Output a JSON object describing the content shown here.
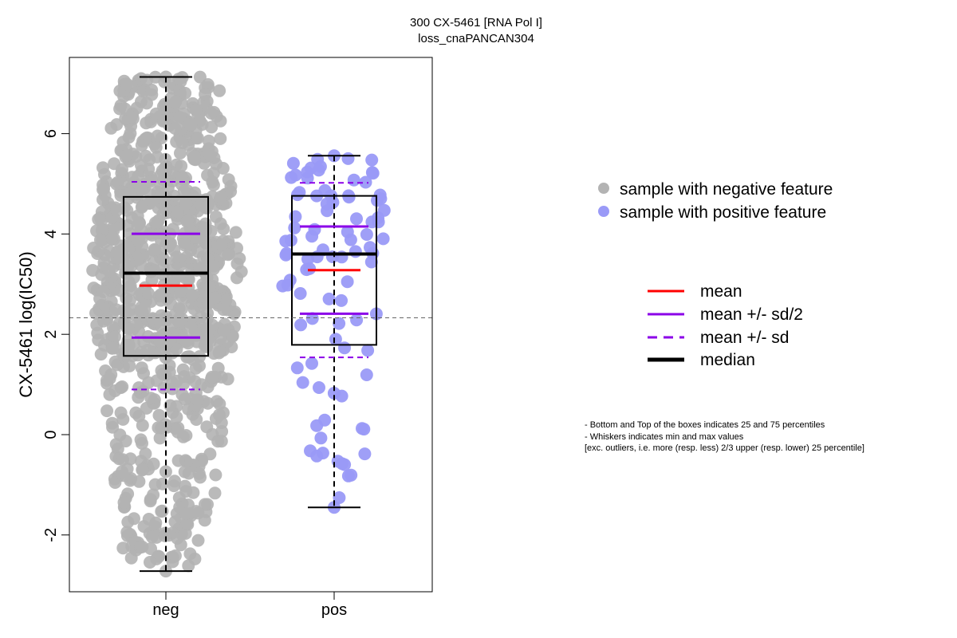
{
  "chart_data": {
    "type": "box",
    "title_line1": "300 CX-5461 [RNA Pol I]",
    "title_line2": "loss_cnaPANCAN304",
    "ylabel": "CX-5461 log(IC50)",
    "xlabel": "",
    "categories": [
      "neg",
      "pos"
    ],
    "ylim": [
      -3.0,
      7.5
    ],
    "yticks": [
      -2,
      0,
      2,
      4,
      6
    ],
    "reference_line": 2.33,
    "groups": [
      {
        "name": "neg",
        "color": "#b3b3b3",
        "n_points": 950,
        "min": -2.72,
        "q1": 1.57,
        "median": 3.22,
        "q3": 4.74,
        "max": 7.13,
        "mean": 2.97,
        "sd": 2.07
      },
      {
        "name": "pos",
        "color": "#9a9af7",
        "n_points": 95,
        "min": -1.45,
        "q1": 1.79,
        "median": 3.6,
        "q3": 4.76,
        "max": 5.56,
        "mean": 3.28,
        "sd": 1.74
      }
    ],
    "legend_points": [
      {
        "label": "sample with negative feature",
        "color": "#b3b3b3"
      },
      {
        "label": "sample with positive feature",
        "color": "#9a9af7"
      }
    ],
    "legend_lines": [
      {
        "label": "mean",
        "color": "#ff0000",
        "style": "solid"
      },
      {
        "label": "mean +/- sd/2",
        "color": "#8b00e8",
        "style": "solid"
      },
      {
        "label": "mean +/- sd",
        "color": "#8b00e8",
        "style": "dashed"
      },
      {
        "label": "median",
        "color": "#000000",
        "style": "thick"
      }
    ],
    "notes": [
      "- Bottom and Top of the boxes indicates 25 and 75 percentiles",
      "- Whiskers indicates min and max values",
      "[exc. outliers, i.e. more (resp. less) 2/3 upper (resp. lower) 25 percentile]"
    ]
  }
}
